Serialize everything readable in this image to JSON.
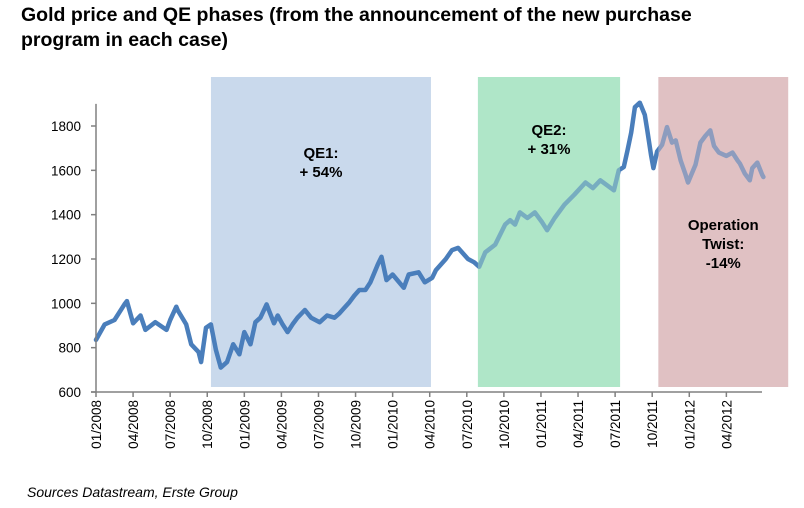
{
  "chart_data": {
    "type": "line",
    "title": "Gold price and QE phases (from the announcement of the new purchase program in each case)",
    "xlabel": "",
    "ylabel": "",
    "source": "Sources Datastream, Erste Group",
    "ylim": [
      600,
      1900
    ],
    "yticks": [
      600,
      800,
      1000,
      1200,
      1400,
      1600,
      1800
    ],
    "xlim_months": [
      0,
      57.5
    ],
    "xticks": [
      {
        "label": "01/2008",
        "month": 0
      },
      {
        "label": "04/2008",
        "month": 3
      },
      {
        "label": "07/2008",
        "month": 6
      },
      {
        "label": "10/2008",
        "month": 9
      },
      {
        "label": "01/2009",
        "month": 12
      },
      {
        "label": "04/2009",
        "month": 15
      },
      {
        "label": "07/2009",
        "month": 18
      },
      {
        "label": "10/2009",
        "month": 21
      },
      {
        "label": "01/2010",
        "month": 24
      },
      {
        "label": "04/2010",
        "month": 27
      },
      {
        "label": "07/2010",
        "month": 30
      },
      {
        "label": "10/2010",
        "month": 33
      },
      {
        "label": "01/2011",
        "month": 36
      },
      {
        "label": "04/2011",
        "month": 39
      },
      {
        "label": "07/2011",
        "month": 42
      },
      {
        "label": "10/2011",
        "month": 45
      },
      {
        "label": "01/2012",
        "month": 48
      },
      {
        "label": "04/2012",
        "month": 51
      }
    ],
    "grid": false,
    "series": [
      {
        "name": "Gold price",
        "color": "#4a7ebb",
        "x_months": [
          0,
          0.7,
          1.5,
          2.3,
          2.5,
          3.0,
          3.6,
          4.0,
          4.8,
          5.7,
          6.0,
          6.5,
          6.6,
          7.3,
          7.7,
          8.3,
          8.5,
          8.9,
          9.3,
          9.7,
          10.1,
          10.6,
          11.1,
          11.6,
          12.0,
          12.5,
          12.9,
          13.3,
          13.8,
          14.4,
          14.7,
          15.1,
          15.5,
          15.9,
          16.3,
          16.9,
          17.4,
          18.1,
          18.7,
          19.3,
          19.7,
          20.1,
          20.5,
          20.9,
          21.3,
          21.8,
          22.2,
          22.8,
          23.1,
          23.5,
          24.0,
          24.9,
          25.3,
          26.1,
          26.6,
          27.2,
          27.5,
          28.3,
          28.8,
          29.3,
          30.1,
          30.6,
          31.0,
          31.5,
          32.3,
          33.1,
          33.5,
          33.9,
          34.3,
          34.9,
          35.5,
          36.1,
          36.5,
          37.1,
          37.9,
          38.7,
          39.6,
          40.2,
          40.8,
          41.9,
          42.3,
          42.7,
          43.0,
          43.3,
          43.6,
          44.0,
          44.4,
          44.6,
          44.9,
          45.1,
          45.4,
          45.8,
          46.2,
          46.6,
          46.9,
          47.3,
          47.7,
          47.9,
          48.5,
          48.9,
          49.3,
          49.7,
          50.0,
          50.4,
          51.0,
          51.5,
          51.9,
          52.1,
          52.5,
          52.9,
          53.1,
          53.5,
          53.9,
          54.0
        ],
        "values": [
          835,
          905,
          925,
          995,
          1010,
          910,
          945,
          880,
          915,
          880,
          925,
          985,
          970,
          905,
          815,
          780,
          735,
          890,
          905,
          790,
          710,
          735,
          815,
          770,
          870,
          815,
          915,
          935,
          995,
          910,
          945,
          905,
          870,
          905,
          935,
          970,
          935,
          915,
          945,
          935,
          955,
          980,
          1005,
          1035,
          1060,
          1060,
          1095,
          1175,
          1210,
          1105,
          1130,
          1070,
          1130,
          1140,
          1095,
          1115,
          1150,
          1200,
          1240,
          1250,
          1200,
          1185,
          1165,
          1230,
          1265,
          1355,
          1375,
          1355,
          1410,
          1385,
          1410,
          1365,
          1330,
          1385,
          1445,
          1490,
          1545,
          1520,
          1555,
          1510,
          1600,
          1615,
          1690,
          1770,
          1885,
          1905,
          1850,
          1780,
          1670,
          1610,
          1685,
          1715,
          1795,
          1725,
          1735,
          1645,
          1580,
          1545,
          1625,
          1725,
          1755,
          1780,
          1710,
          1680,
          1665,
          1680,
          1645,
          1630,
          1585,
          1555,
          1610,
          1635,
          1580,
          1570
        ]
      }
    ],
    "phases": [
      {
        "name": "QE1",
        "label_line1": "QE1:",
        "label_line2": "+ 54%",
        "label_line3": "",
        "start_month": 9.3,
        "end_month": 27.1,
        "color": "#c9d9ec",
        "change_pct": 54
      },
      {
        "name": "QE2",
        "label_line1": "QE2:",
        "label_line2": "+ 31%",
        "label_line3": "",
        "start_month": 30.9,
        "end_month": 42.4,
        "color": "#b0e6c8",
        "change_pct": 31
      },
      {
        "name": "Operation Twist",
        "label_line1": "Operation",
        "label_line2": "Twist:",
        "label_line3": "-14%",
        "start_month": 45.5,
        "end_month": 56.0,
        "color": "#e0c2c3",
        "change_pct": -14
      }
    ]
  }
}
